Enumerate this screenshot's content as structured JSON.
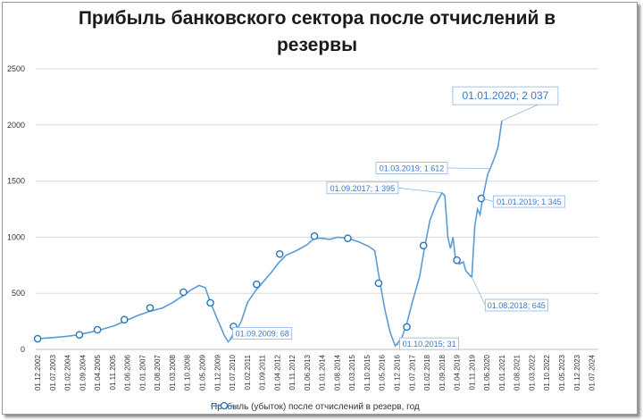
{
  "chart_data": {
    "type": "line",
    "title": "Прибыль банковского сектора после отчислений в резервы",
    "ylim": [
      0,
      2500
    ],
    "y_ticks": [
      0,
      500,
      1000,
      1500,
      2000,
      2500
    ],
    "x_tick_labels": [
      "01.12.2002",
      "01.07.2003",
      "01.02.2004",
      "01.09.2004",
      "01.04.2005",
      "01.11.2005",
      "01.06.2006",
      "01.01.2007",
      "01.08.2007",
      "01.03.2008",
      "01.10.2008",
      "01.05.2009",
      "01.12.2009",
      "01.07.2010",
      "01.02.2011",
      "01.09.2011",
      "01.04.2012",
      "01.11.2012",
      "01.06.2013",
      "01.01.2014",
      "01.08.2014",
      "01.03.2015",
      "01.10.2015",
      "01.05.2016",
      "01.12.2016",
      "01.07.2017",
      "01.02.2018",
      "01.09.2018",
      "01.04.2019",
      "01.11.2019",
      "01.06.2020",
      "01.01.2021",
      "01.08.2021",
      "01.03.2022",
      "01.10.2022",
      "01.05.2023",
      "01.12.2023",
      "01.07.2024"
    ],
    "grid": true,
    "legend_position": "bottom",
    "color": "#5b9bd5",
    "series": [
      {
        "name": "Прибыль (убыток) после отчислений в резерв, год",
        "points": [
          [
            2002.92,
            95
          ],
          [
            2003.5,
            105
          ],
          [
            2004.0,
            115
          ],
          [
            2004.5,
            130
          ],
          [
            2004.9,
            150
          ],
          [
            2005.3,
            170
          ],
          [
            2005.9,
            210
          ],
          [
            2006.3,
            250
          ],
          [
            2006.8,
            300
          ],
          [
            2007.3,
            340
          ],
          [
            2007.8,
            370
          ],
          [
            2008.2,
            420
          ],
          [
            2008.6,
            480
          ],
          [
            2008.9,
            530
          ],
          [
            2009.2,
            570
          ],
          [
            2009.45,
            550
          ],
          [
            2009.65,
            420
          ],
          [
            2009.9,
            280
          ],
          [
            2010.2,
            120
          ],
          [
            2010.35,
            68
          ],
          [
            2010.6,
            140
          ],
          [
            2010.85,
            250
          ],
          [
            2011.1,
            420
          ],
          [
            2011.4,
            520
          ],
          [
            2011.7,
            600
          ],
          [
            2012.0,
            680
          ],
          [
            2012.3,
            770
          ],
          [
            2012.6,
            840
          ],
          [
            2013.0,
            880
          ],
          [
            2013.4,
            930
          ],
          [
            2013.7,
            990
          ],
          [
            2014.0,
            990
          ],
          [
            2014.3,
            980
          ],
          [
            2014.6,
            1000
          ],
          [
            2015.0,
            990
          ],
          [
            2015.4,
            960
          ],
          [
            2015.8,
            920
          ],
          [
            2016.05,
            880
          ],
          [
            2016.25,
            600
          ],
          [
            2016.45,
            350
          ],
          [
            2016.65,
            150
          ],
          [
            2016.85,
            31
          ],
          [
            2017.1,
            100
          ],
          [
            2017.3,
            230
          ],
          [
            2017.55,
            450
          ],
          [
            2017.8,
            650
          ],
          [
            2018.0,
            920
          ],
          [
            2018.2,
            1150
          ],
          [
            2018.45,
            1300
          ],
          [
            2018.67,
            1395
          ],
          [
            2018.78,
            1370
          ],
          [
            2018.9,
            1000
          ],
          [
            2019.0,
            900
          ],
          [
            2019.1,
            1000
          ],
          [
            2019.2,
            790
          ],
          [
            2019.35,
            760
          ],
          [
            2019.5,
            780
          ],
          [
            2019.6,
            700
          ],
          [
            2019.75,
            660
          ],
          [
            2019.83,
            645
          ],
          [
            2019.95,
            1100
          ],
          [
            2020.05,
            1250
          ],
          [
            2020.15,
            1200
          ],
          [
            2020.25,
            1345
          ],
          [
            2020.35,
            1450
          ],
          [
            2020.45,
            1560
          ],
          [
            2020.55,
            1612
          ],
          [
            2020.7,
            1700
          ],
          [
            2020.85,
            1800
          ],
          [
            2021.0,
            2037
          ]
        ]
      }
    ],
    "markers": [
      [
        2002.92,
        95
      ],
      [
        2004.55,
        130
      ],
      [
        2005.25,
        175
      ],
      [
        2006.3,
        265
      ],
      [
        2007.3,
        370
      ],
      [
        2008.6,
        510
      ],
      [
        2009.65,
        415
      ],
      [
        2010.55,
        205
      ],
      [
        2011.45,
        580
      ],
      [
        2012.35,
        850
      ],
      [
        2013.7,
        1010
      ],
      [
        2015.0,
        990
      ],
      [
        2016.2,
        590
      ],
      [
        2017.3,
        200
      ],
      [
        2017.95,
        925
      ],
      [
        2019.25,
        795
      ],
      [
        2020.2,
        1345
      ]
    ],
    "annotations": [
      {
        "text": "01.01.2020; 2 037",
        "x": 2021.0,
        "y": 2037,
        "big": true
      },
      {
        "text": "01.03.2019; 1 612",
        "x": 2020.55,
        "y": 1612
      },
      {
        "text": "01.09.2017; 1 395",
        "x": 2018.67,
        "y": 1395
      },
      {
        "text": "01.01.2019; 1 345",
        "x": 2020.25,
        "y": 1345
      },
      {
        "text": "01.08.2018; 645",
        "x": 2019.83,
        "y": 645
      },
      {
        "text": "01.09.2009; 68",
        "x": 2010.35,
        "y": 68
      },
      {
        "text": "01.10.2015; 31",
        "x": 2016.85,
        "y": 31
      }
    ]
  }
}
